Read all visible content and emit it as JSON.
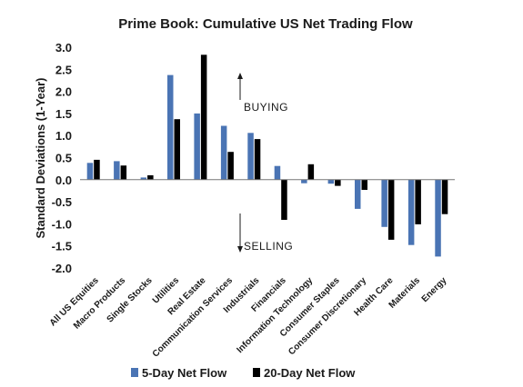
{
  "chart_data": {
    "type": "bar",
    "title": "Prime Book: Cumulative US Net Trading Flow",
    "xlabel": "",
    "ylabel": "Standard Deviations (1-Year)",
    "ylim": [
      -2.0,
      3.0
    ],
    "yticks": [
      "3.0",
      "2.5",
      "2.0",
      "1.5",
      "1.0",
      "0.5",
      "0.0",
      "-0.5",
      "-1.0",
      "-1.5",
      "-2.0"
    ],
    "categories": [
      "All US Equities",
      "Macro Products",
      "Single Stocks",
      "Utilities",
      "Real Estate",
      "Communication Services",
      "Industrials",
      "Financials",
      "Information Technology",
      "Consumer Staples",
      "Consumer Discretionary",
      "Health Care",
      "Materials",
      "Energy"
    ],
    "series": [
      {
        "name": "5-Day Net Flow",
        "color": "#4a74b4",
        "values": [
          0.38,
          0.42,
          0.05,
          2.37,
          1.5,
          1.22,
          1.06,
          0.31,
          -0.08,
          -0.09,
          -0.66,
          -1.07,
          -1.48,
          -1.74
        ]
      },
      {
        "name": "20-Day Net Flow",
        "color": "#000000",
        "values": [
          0.45,
          0.32,
          0.1,
          1.37,
          2.83,
          0.63,
          0.92,
          -0.91,
          0.35,
          -0.14,
          -0.23,
          -1.36,
          -1.01,
          -0.78
        ]
      }
    ],
    "annotations": [
      {
        "text": "BUYING",
        "direction": "up"
      },
      {
        "text": "SELLING",
        "direction": "down"
      }
    ],
    "grid": false,
    "legend": "bottom"
  }
}
